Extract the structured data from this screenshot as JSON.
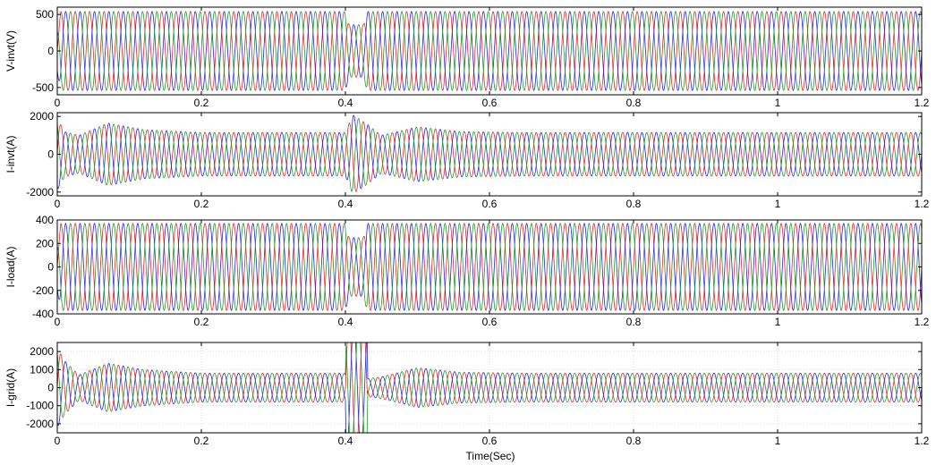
{
  "figure": {
    "xlabel": "Time(Sec)"
  },
  "colors": {
    "phase_a": "#e8262b",
    "phase_b": "#2424d8",
    "phase_c": "#1f9a2a",
    "grid": "#d9d9d9",
    "axes": "#000000"
  },
  "chart_data": [
    {
      "type": "line",
      "ylabel": "V-invt(V)",
      "xlim": [
        0,
        1.2
      ],
      "ylim": [
        -600,
        600
      ],
      "xticks": [
        0,
        0.2,
        0.4,
        0.6,
        0.8,
        1,
        1.2
      ],
      "xtick_labels": [
        "0",
        "0.2",
        "0.4",
        "0.6",
        "0.8",
        "1",
        "1.2"
      ],
      "yticks": [
        -500,
        0,
        500
      ],
      "ytick_labels": [
        "-500",
        "0",
        "500"
      ],
      "frequency_hz": 50,
      "series": [
        {
          "phase_deg": 0
        },
        {
          "phase_deg": -120
        },
        {
          "phase_deg": 120
        }
      ],
      "envelope": [
        [
          0,
          300
        ],
        [
          0.005,
          540
        ],
        [
          0.4,
          540
        ],
        [
          0.405,
          360
        ],
        [
          0.425,
          360
        ],
        [
          0.43,
          540
        ],
        [
          1.2,
          540
        ]
      ]
    },
    {
      "type": "line",
      "ylabel": "I-invt(A)",
      "xlim": [
        0,
        1.2
      ],
      "ylim": [
        -2200,
        2200
      ],
      "xticks": [
        0,
        0.2,
        0.4,
        0.6,
        0.8,
        1,
        1.2
      ],
      "xtick_labels": [
        "0",
        "0.2",
        "0.4",
        "0.6",
        "0.8",
        "1",
        "1.2"
      ],
      "yticks": [
        -2000,
        0,
        2000
      ],
      "ytick_labels": [
        "-2000",
        "0",
        "2000"
      ],
      "frequency_hz": 50,
      "series": [
        {
          "phase_deg": 0
        },
        {
          "phase_deg": -120
        },
        {
          "phase_deg": 120
        }
      ],
      "envelope": [
        [
          0,
          1900
        ],
        [
          0.01,
          1200
        ],
        [
          0.03,
          1000
        ],
        [
          0.07,
          1650
        ],
        [
          0.12,
          1300
        ],
        [
          0.2,
          1150
        ],
        [
          0.4,
          1150
        ],
        [
          0.41,
          2100
        ],
        [
          0.43,
          1600
        ],
        [
          0.45,
          1000
        ],
        [
          0.5,
          1450
        ],
        [
          0.56,
          1200
        ],
        [
          0.65,
          1150
        ],
        [
          1.2,
          1150
        ]
      ]
    },
    {
      "type": "line",
      "ylabel": "I-load(A)",
      "xlim": [
        0,
        1.2
      ],
      "ylim": [
        -400,
        400
      ],
      "xticks": [
        0,
        0.2,
        0.4,
        0.6,
        0.8,
        1,
        1.2
      ],
      "xtick_labels": [
        "0",
        "0.2",
        "0.4",
        "0.6",
        "0.8",
        "1",
        "1.2"
      ],
      "yticks": [
        -400,
        -200,
        0,
        200,
        400
      ],
      "ytick_labels": [
        "-400",
        "-200",
        "0",
        "200",
        "400"
      ],
      "frequency_hz": 50,
      "series": [
        {
          "phase_deg": 0
        },
        {
          "phase_deg": -120
        },
        {
          "phase_deg": 120
        }
      ],
      "envelope": [
        [
          0,
          200
        ],
        [
          0.005,
          370
        ],
        [
          0.4,
          370
        ],
        [
          0.405,
          250
        ],
        [
          0.425,
          250
        ],
        [
          0.43,
          370
        ],
        [
          1.2,
          370
        ]
      ]
    },
    {
      "type": "line",
      "ylabel": "I-grid(A)",
      "xlim": [
        0,
        1.2
      ],
      "ylim": [
        -2500,
        2500
      ],
      "xticks": [
        0,
        0.2,
        0.4,
        0.6,
        0.8,
        1,
        1.2
      ],
      "xtick_labels": [
        "0",
        "0.2",
        "0.4",
        "0.6",
        "0.8",
        "1",
        "1.2"
      ],
      "yticks": [
        -2000,
        -1000,
        0,
        1000,
        2000
      ],
      "ytick_labels": [
        "-2000",
        "-1000",
        "0",
        "1000",
        "2000"
      ],
      "grid": true,
      "frequency_hz": 50,
      "series": [
        {
          "phase_deg": 0
        },
        {
          "phase_deg": -120
        },
        {
          "phase_deg": 120
        }
      ],
      "envelope": [
        [
          0,
          2200
        ],
        [
          0.01,
          1500
        ],
        [
          0.03,
          700
        ],
        [
          0.07,
          1350
        ],
        [
          0.12,
          1000
        ],
        [
          0.2,
          800
        ],
        [
          0.4,
          800
        ],
        [
          0.401,
          3500
        ],
        [
          0.43,
          3500
        ],
        [
          0.431,
          500
        ],
        [
          0.45,
          600
        ],
        [
          0.5,
          1100
        ],
        [
          0.56,
          850
        ],
        [
          0.65,
          800
        ],
        [
          1.2,
          800
        ]
      ]
    }
  ]
}
